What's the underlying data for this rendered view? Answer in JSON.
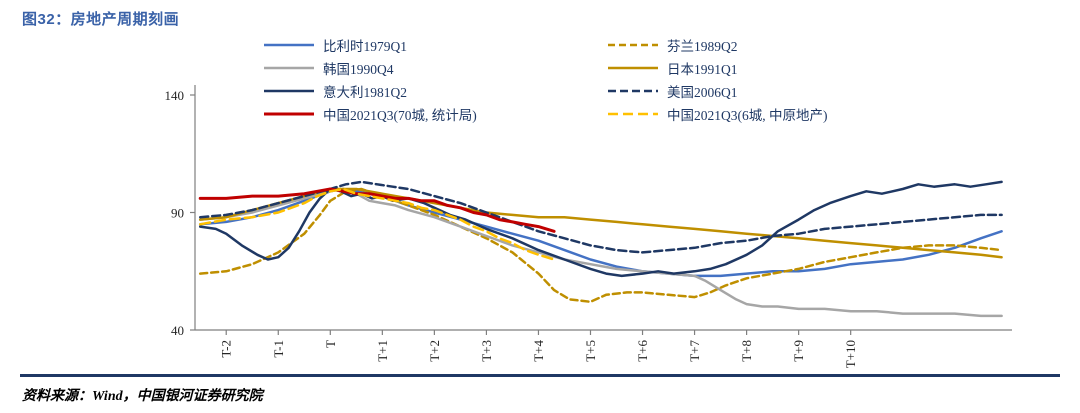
{
  "header": {
    "title": "图32：房地产周期刻画"
  },
  "footer": {
    "source": "资料来源：Wind，中国银河证券研究院"
  },
  "chart_data": {
    "type": "line",
    "title": "房地产周期刻画",
    "xlabel": "",
    "ylabel": "",
    "xlim": [
      -2.6,
      13.1
    ],
    "ylim": [
      40,
      140
    ],
    "grid": false,
    "legend_position": "top",
    "axis_color": "#7f7f7f",
    "y_ticks": [
      40,
      90,
      140
    ],
    "x_ticks": [
      {
        "x": -2,
        "label": "T-2"
      },
      {
        "x": -1,
        "label": "T-1"
      },
      {
        "x": 0,
        "label": "T"
      },
      {
        "x": 1,
        "label": "T+1"
      },
      {
        "x": 2,
        "label": "T+2"
      },
      {
        "x": 3,
        "label": "T+3"
      },
      {
        "x": 4,
        "label": "T+4"
      },
      {
        "x": 5,
        "label": "T+5"
      },
      {
        "x": 6,
        "label": "T+6"
      },
      {
        "x": 7,
        "label": "T+7"
      },
      {
        "x": 8,
        "label": "T+8"
      },
      {
        "x": 9,
        "label": "T+9"
      },
      {
        "x": 10,
        "label": "T+10"
      }
    ],
    "legend_columns": [
      [
        0,
        2,
        4,
        6
      ],
      [
        1,
        3,
        5,
        7
      ]
    ],
    "series": [
      {
        "name": "比利时1979Q1",
        "color": "#4472C4",
        "dash": "",
        "width": 2.5,
        "points": [
          [
            -2.5,
            85
          ],
          [
            -2,
            86
          ],
          [
            -1.5,
            88
          ],
          [
            -1,
            91
          ],
          [
            -0.5,
            95
          ],
          [
            -0.25,
            97
          ],
          [
            0,
            99
          ],
          [
            0.25,
            100
          ],
          [
            0.5,
            99
          ],
          [
            0.75,
            98
          ],
          [
            1,
            97
          ],
          [
            1.25,
            95
          ],
          [
            1.5,
            93
          ],
          [
            2,
            90
          ],
          [
            2.5,
            87
          ],
          [
            3,
            84
          ],
          [
            3.5,
            81
          ],
          [
            4,
            78
          ],
          [
            4.5,
            74
          ],
          [
            5,
            70
          ],
          [
            5.5,
            67
          ],
          [
            6,
            65
          ],
          [
            6.5,
            64
          ],
          [
            7,
            63
          ],
          [
            7.5,
            63
          ],
          [
            8,
            64
          ],
          [
            8.5,
            65
          ],
          [
            9,
            65
          ],
          [
            9.5,
            66
          ],
          [
            10,
            68
          ],
          [
            10.5,
            69
          ],
          [
            11,
            70
          ],
          [
            11.5,
            72
          ],
          [
            12,
            75
          ],
          [
            12.5,
            79
          ],
          [
            12.9,
            82
          ]
        ]
      },
      {
        "name": "芬兰1989Q2",
        "color": "#BF8F00",
        "dash": "7 4",
        "width": 2.5,
        "points": [
          [
            -2.5,
            64
          ],
          [
            -2,
            65
          ],
          [
            -1.5,
            68
          ],
          [
            -1,
            73
          ],
          [
            -0.5,
            81
          ],
          [
            -0.2,
            89
          ],
          [
            0,
            95
          ],
          [
            0.3,
            99
          ],
          [
            0.6,
            100
          ],
          [
            1,
            97
          ],
          [
            1.5,
            93
          ],
          [
            2,
            89
          ],
          [
            2.5,
            84
          ],
          [
            3,
            79
          ],
          [
            3.5,
            73
          ],
          [
            4,
            64
          ],
          [
            4.3,
            57
          ],
          [
            4.6,
            53
          ],
          [
            5,
            52
          ],
          [
            5.3,
            55
          ],
          [
            5.7,
            56
          ],
          [
            6,
            56
          ],
          [
            6.5,
            55
          ],
          [
            7,
            54
          ],
          [
            7.3,
            56
          ],
          [
            7.6,
            59
          ],
          [
            8,
            62
          ],
          [
            8.5,
            64
          ],
          [
            9,
            66
          ],
          [
            9.5,
            69
          ],
          [
            10,
            71
          ],
          [
            10.5,
            73
          ],
          [
            11,
            75
          ],
          [
            11.5,
            76
          ],
          [
            12,
            76
          ],
          [
            12.5,
            75
          ],
          [
            12.9,
            74
          ]
        ]
      },
      {
        "name": "韩国1990Q4",
        "color": "#A6A6A6",
        "dash": "",
        "width": 2.5,
        "points": [
          [
            -2.5,
            87
          ],
          [
            -2,
            88
          ],
          [
            -1.5,
            90
          ],
          [
            -1,
            93
          ],
          [
            -0.5,
            96
          ],
          [
            0,
            99
          ],
          [
            0.25,
            100
          ],
          [
            0.5,
            98
          ],
          [
            0.75,
            95
          ],
          [
            1,
            94
          ],
          [
            1.25,
            93
          ],
          [
            1.5,
            91
          ],
          [
            2,
            88
          ],
          [
            2.5,
            84
          ],
          [
            3,
            80
          ],
          [
            3.5,
            76
          ],
          [
            4,
            73
          ],
          [
            4.5,
            70
          ],
          [
            5,
            68
          ],
          [
            5.5,
            66
          ],
          [
            6,
            65
          ],
          [
            6.5,
            64
          ],
          [
            7,
            63
          ],
          [
            7.2,
            61
          ],
          [
            7.5,
            57
          ],
          [
            7.8,
            53
          ],
          [
            8,
            51
          ],
          [
            8.3,
            50
          ],
          [
            8.6,
            50
          ],
          [
            9,
            49
          ],
          [
            9.5,
            49
          ],
          [
            10,
            48
          ],
          [
            10.5,
            48
          ],
          [
            11,
            47
          ],
          [
            11.5,
            47
          ],
          [
            12,
            47
          ],
          [
            12.5,
            46
          ],
          [
            12.9,
            46
          ]
        ]
      },
      {
        "name": "日本1991Q1",
        "color": "#BF8F00",
        "dash": "",
        "width": 2.5,
        "points": [
          [
            -2.5,
            87
          ],
          [
            -2,
            88
          ],
          [
            -1.5,
            91
          ],
          [
            -1,
            94
          ],
          [
            -0.5,
            97
          ],
          [
            0,
            100
          ],
          [
            0.5,
            100
          ],
          [
            1,
            98
          ],
          [
            1.5,
            96
          ],
          [
            2,
            94
          ],
          [
            2.5,
            92
          ],
          [
            3,
            90
          ],
          [
            3.5,
            89
          ],
          [
            4,
            88
          ],
          [
            4.5,
            88
          ],
          [
            5,
            87
          ],
          [
            5.5,
            86
          ],
          [
            6,
            85
          ],
          [
            6.5,
            84
          ],
          [
            7,
            83
          ],
          [
            7.5,
            82
          ],
          [
            8,
            81
          ],
          [
            8.5,
            80
          ],
          [
            9,
            79
          ],
          [
            9.5,
            78
          ],
          [
            10,
            77
          ],
          [
            10.5,
            76
          ],
          [
            11,
            75
          ],
          [
            11.5,
            74
          ],
          [
            12,
            73
          ],
          [
            12.5,
            72
          ],
          [
            12.9,
            71
          ]
        ]
      },
      {
        "name": "意大利1981Q2",
        "color": "#1F3864",
        "dash": "",
        "width": 2.5,
        "points": [
          [
            -2.5,
            84
          ],
          [
            -2.2,
            83
          ],
          [
            -2,
            81
          ],
          [
            -1.7,
            76
          ],
          [
            -1.4,
            72
          ],
          [
            -1.2,
            70
          ],
          [
            -1,
            71
          ],
          [
            -0.8,
            75
          ],
          [
            -0.6,
            82
          ],
          [
            -0.4,
            90
          ],
          [
            -0.2,
            96
          ],
          [
            0,
            100
          ],
          [
            0.2,
            99
          ],
          [
            0.4,
            97
          ],
          [
            0.6,
            98
          ],
          [
            0.8,
            96
          ],
          [
            1,
            97
          ],
          [
            1.2,
            95
          ],
          [
            1.5,
            96
          ],
          [
            1.8,
            94
          ],
          [
            2,
            92
          ],
          [
            2.3,
            89
          ],
          [
            2.6,
            87
          ],
          [
            3,
            83
          ],
          [
            3.5,
            79
          ],
          [
            4,
            74
          ],
          [
            4.5,
            70
          ],
          [
            5,
            66
          ],
          [
            5.3,
            64
          ],
          [
            5.6,
            63
          ],
          [
            6,
            64
          ],
          [
            6.3,
            65
          ],
          [
            6.6,
            64
          ],
          [
            7,
            65
          ],
          [
            7.3,
            66
          ],
          [
            7.6,
            68
          ],
          [
            8,
            72
          ],
          [
            8.3,
            76
          ],
          [
            8.6,
            82
          ],
          [
            9,
            87
          ],
          [
            9.3,
            91
          ],
          [
            9.6,
            94
          ],
          [
            10,
            97
          ],
          [
            10.3,
            99
          ],
          [
            10.6,
            98
          ],
          [
            11,
            100
          ],
          [
            11.3,
            102
          ],
          [
            11.6,
            101
          ],
          [
            12,
            102
          ],
          [
            12.3,
            101
          ],
          [
            12.6,
            102
          ],
          [
            12.9,
            103
          ]
        ]
      },
      {
        "name": "美国2006Q1",
        "color": "#1F3864",
        "dash": "8 4",
        "width": 2.5,
        "points": [
          [
            -2.5,
            88
          ],
          [
            -2,
            89
          ],
          [
            -1.5,
            91
          ],
          [
            -1,
            94
          ],
          [
            -0.5,
            97
          ],
          [
            0,
            100
          ],
          [
            0.3,
            102
          ],
          [
            0.6,
            103
          ],
          [
            0.9,
            102
          ],
          [
            1.2,
            101
          ],
          [
            1.5,
            100
          ],
          [
            2,
            97
          ],
          [
            2.5,
            94
          ],
          [
            3,
            90
          ],
          [
            3.5,
            86
          ],
          [
            4,
            82
          ],
          [
            4.5,
            79
          ],
          [
            5,
            76
          ],
          [
            5.5,
            74
          ],
          [
            6,
            73
          ],
          [
            6.5,
            74
          ],
          [
            7,
            75
          ],
          [
            7.5,
            77
          ],
          [
            8,
            78
          ],
          [
            8.5,
            80
          ],
          [
            9,
            81
          ],
          [
            9.5,
            83
          ],
          [
            10,
            84
          ],
          [
            10.5,
            85
          ],
          [
            11,
            86
          ],
          [
            11.5,
            87
          ],
          [
            12,
            88
          ],
          [
            12.5,
            89
          ],
          [
            12.9,
            89
          ]
        ]
      },
      {
        "name": "中国2021Q3(70城, 统计局)",
        "color": "#C00000",
        "dash": "",
        "width": 3,
        "points": [
          [
            -2.5,
            96
          ],
          [
            -2,
            96
          ],
          [
            -1.5,
            97
          ],
          [
            -1,
            97
          ],
          [
            -0.5,
            98
          ],
          [
            -0.25,
            99
          ],
          [
            0,
            100
          ],
          [
            0.25,
            99
          ],
          [
            0.5,
            98
          ],
          [
            0.75,
            98
          ],
          [
            1,
            97
          ],
          [
            1.25,
            96
          ],
          [
            1.5,
            96
          ],
          [
            1.75,
            95
          ],
          [
            2,
            95
          ],
          [
            2.25,
            93
          ],
          [
            2.5,
            92
          ],
          [
            2.75,
            90
          ],
          [
            3,
            89
          ],
          [
            3.25,
            87
          ],
          [
            3.5,
            86
          ],
          [
            3.75,
            85
          ],
          [
            4,
            84
          ],
          [
            4.3,
            82
          ]
        ]
      },
      {
        "name": "中国2021Q3(6城, 中原地产)",
        "color": "#FFC000",
        "dash": "10 5",
        "width": 2.5,
        "points": [
          [
            -2.5,
            85
          ],
          [
            -2,
            87
          ],
          [
            -1.5,
            88
          ],
          [
            -1,
            90
          ],
          [
            -0.5,
            94
          ],
          [
            -0.25,
            97
          ],
          [
            0,
            99
          ],
          [
            0.25,
            100
          ],
          [
            0.5,
            98
          ],
          [
            0.75,
            97
          ],
          [
            1,
            96
          ],
          [
            1.25,
            95
          ],
          [
            1.5,
            94
          ],
          [
            1.75,
            92
          ],
          [
            2,
            91
          ],
          [
            2.25,
            89
          ],
          [
            2.5,
            87
          ],
          [
            2.75,
            84
          ],
          [
            3,
            82
          ],
          [
            3.25,
            79
          ],
          [
            3.5,
            77
          ],
          [
            3.75,
            74
          ],
          [
            4,
            72
          ],
          [
            4.3,
            70
          ]
        ]
      }
    ]
  }
}
